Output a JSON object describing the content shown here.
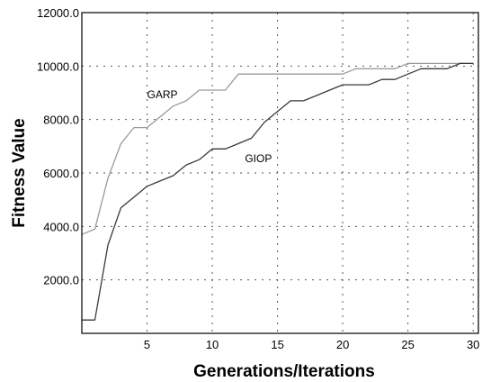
{
  "chart_data": {
    "type": "line",
    "title": "",
    "xlabel": "Generations/Iterations",
    "ylabel": "Fitness Value",
    "xlim": [
      0,
      30.4
    ],
    "ylim": [
      0,
      12000
    ],
    "x_ticks": [
      5,
      10,
      15,
      20,
      25,
      30
    ],
    "x_tick_labels": [
      "5",
      "10",
      "15",
      "20",
      "25",
      "30"
    ],
    "y_ticks": [
      2000,
      4000,
      6000,
      8000,
      10000,
      12000
    ],
    "y_tick_labels": [
      "2000.0",
      "4000.0",
      "6000.0",
      "8000.0",
      "10000.0",
      "12000.0"
    ],
    "grid": true,
    "series": [
      {
        "name": "GARP",
        "color": "#9a9a9a",
        "label_at": [
          5,
          8800
        ],
        "points": [
          [
            0,
            3700
          ],
          [
            1,
            3900
          ],
          [
            2,
            5800
          ],
          [
            3,
            7100
          ],
          [
            4,
            7700
          ],
          [
            5,
            7700
          ],
          [
            6,
            8100
          ],
          [
            7,
            8500
          ],
          [
            8,
            8700
          ],
          [
            9,
            9100
          ],
          [
            10,
            9100
          ],
          [
            11,
            9100
          ],
          [
            12,
            9700
          ],
          [
            13,
            9700
          ],
          [
            14,
            9700
          ],
          [
            15,
            9700
          ],
          [
            16,
            9700
          ],
          [
            17,
            9700
          ],
          [
            18,
            9700
          ],
          [
            19,
            9700
          ],
          [
            20,
            9700
          ],
          [
            21,
            9900
          ],
          [
            22,
            9900
          ],
          [
            23,
            9900
          ],
          [
            24,
            9900
          ],
          [
            25,
            10100
          ],
          [
            26,
            10100
          ],
          [
            27,
            10100
          ],
          [
            28,
            10100
          ],
          [
            29,
            10100
          ],
          [
            30,
            10100
          ]
        ]
      },
      {
        "name": "GIOP",
        "color": "#3a3a3a",
        "label_at": [
          12.5,
          6400
        ],
        "points": [
          [
            0,
            500
          ],
          [
            1,
            500
          ],
          [
            2,
            3300
          ],
          [
            3,
            4700
          ],
          [
            4,
            5100
          ],
          [
            5,
            5500
          ],
          [
            6,
            5700
          ],
          [
            7,
            5900
          ],
          [
            8,
            6300
          ],
          [
            9,
            6500
          ],
          [
            10,
            6900
          ],
          [
            11,
            6900
          ],
          [
            12,
            7100
          ],
          [
            13,
            7300
          ],
          [
            14,
            7900
          ],
          [
            15,
            8300
          ],
          [
            16,
            8700
          ],
          [
            17,
            8700
          ],
          [
            18,
            8900
          ],
          [
            19,
            9100
          ],
          [
            20,
            9300
          ],
          [
            21,
            9300
          ],
          [
            22,
            9300
          ],
          [
            23,
            9500
          ],
          [
            24,
            9500
          ],
          [
            25,
            9700
          ],
          [
            26,
            9900
          ],
          [
            27,
            9900
          ],
          [
            28,
            9900
          ],
          [
            29,
            10100
          ],
          [
            30,
            10100
          ]
        ]
      }
    ]
  }
}
